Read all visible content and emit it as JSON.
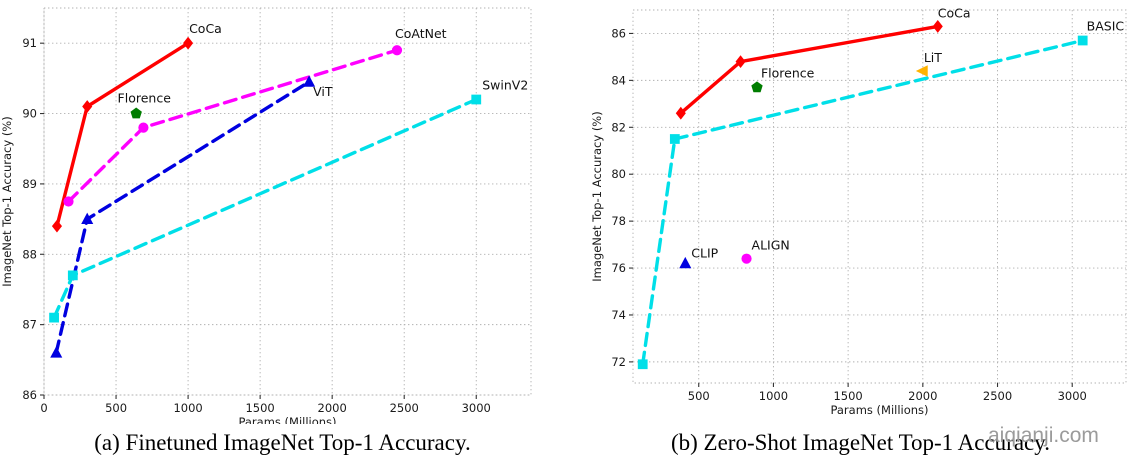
{
  "watermark": {
    "text": "aiqianji.com",
    "color": "#9b9b9b"
  },
  "figures": [
    {
      "id": "finetuned",
      "caption": "(a) Finetuned ImageNet Top-1 Accuracy."
    },
    {
      "id": "zeroshot",
      "caption": "(b) Zero-Shot ImageNet Top-1 Accuracy."
    }
  ],
  "chart_data": [
    {
      "type": "line",
      "title": "",
      "xlabel": "Params (Millions)",
      "ylabel": "ImageNet Top-1 Accuracy (%)",
      "xlim": [
        0,
        3380
      ],
      "ylim": [
        86,
        91.5
      ],
      "xticks": [
        0,
        500,
        1000,
        1500,
        2000,
        2500,
        3000
      ],
      "yticks": [
        86,
        87,
        88,
        89,
        90,
        91
      ],
      "grid": true,
      "legend": "none",
      "series": [
        {
          "name": "CoCa",
          "color": "#ff0000",
          "line": "solid",
          "marker": "diamond",
          "points": [
            [
              90,
              88.4
            ],
            [
              300,
              90.1
            ],
            [
              1000,
              91.0
            ]
          ],
          "label": {
            "text": "CoCa",
            "dx": 1,
            "dy": -10,
            "anchor": "start"
          }
        },
        {
          "name": "CoAtNet",
          "color": "#ff00ff",
          "line": "dashed",
          "marker": "circle",
          "points": [
            [
              170,
              88.75
            ],
            [
              690,
              89.8
            ],
            [
              2450,
              90.9
            ]
          ],
          "label": {
            "text": "CoAtNet",
            "dx": -2,
            "dy": -12,
            "anchor": "start"
          }
        },
        {
          "name": "ViT",
          "color": "#0000e0",
          "line": "dashed",
          "marker": "triangle-up",
          "points": [
            [
              85,
              86.6
            ],
            [
              300,
              88.5
            ],
            [
              1840,
              90.45
            ]
          ],
          "label": {
            "text": "ViT",
            "dx": 4,
            "dy": 14,
            "anchor": "start"
          }
        },
        {
          "name": "SwinV2",
          "color": "#00dfe8",
          "line": "dashed",
          "marker": "square",
          "points": [
            [
              70,
              87.1
            ],
            [
              200,
              87.7
            ],
            [
              3000,
              90.2
            ]
          ],
          "label": {
            "text": "SwinV2",
            "dx": 6,
            "dy": -10,
            "anchor": "start"
          }
        },
        {
          "name": "Florence",
          "color": "#007d00",
          "line": "none",
          "marker": "pentagon",
          "points": [
            [
              640,
              90.0
            ]
          ],
          "label": {
            "text": "Florence",
            "dx": 8,
            "dy": -11,
            "anchor": "middle"
          }
        }
      ]
    },
    {
      "type": "line",
      "title": "",
      "xlabel": "Params (Millions)",
      "ylabel": "ImageNet Top-1 Accuracy (%)",
      "xlim": [
        60,
        3360
      ],
      "ylim": [
        71.1,
        87.0
      ],
      "xticks": [
        500,
        1000,
        1500,
        2000,
        2500,
        3000
      ],
      "yticks": [
        72,
        74,
        76,
        78,
        80,
        82,
        84,
        86
      ],
      "grid": true,
      "legend": "none",
      "series": [
        {
          "name": "CoCa",
          "color": "#ff0000",
          "line": "solid",
          "marker": "diamond",
          "points": [
            [
              380,
              82.6
            ],
            [
              780,
              84.8
            ],
            [
              2100,
              86.3
            ]
          ],
          "label": {
            "text": "CoCa",
            "dx": 0,
            "dy": -9,
            "anchor": "start"
          }
        },
        {
          "name": "BASIC",
          "color": "#00dfe8",
          "line": "dashed",
          "marker": "square",
          "points": [
            [
              125,
              71.9
            ],
            [
              340,
              81.5
            ],
            [
              3070,
              85.7
            ]
          ],
          "label": {
            "text": "BASIC",
            "dx": 4,
            "dy": -10,
            "anchor": "start"
          }
        },
        {
          "name": "CLIP",
          "color": "#0000e0",
          "line": "none",
          "marker": "triangle-up",
          "points": [
            [
              410,
              76.2
            ]
          ],
          "label": {
            "text": "CLIP",
            "dx": 6,
            "dy": -6,
            "anchor": "start"
          }
        },
        {
          "name": "ALIGN",
          "color": "#ff00ff",
          "line": "none",
          "marker": "circle",
          "points": [
            [
              820,
              76.4
            ]
          ],
          "label": {
            "text": "ALIGN",
            "dx": 5,
            "dy": -9,
            "anchor": "start"
          }
        },
        {
          "name": "Florence",
          "color": "#007d00",
          "line": "none",
          "marker": "pentagon",
          "points": [
            [
              890,
              83.7
            ]
          ],
          "label": {
            "text": "Florence",
            "dx": 4,
            "dy": -10,
            "anchor": "start"
          }
        },
        {
          "name": "LiT",
          "color": "#ffb300",
          "line": "none",
          "marker": "triangle-left",
          "points": [
            [
              2000,
              84.4
            ]
          ],
          "label": {
            "text": "LiT",
            "dx": 1,
            "dy": -9,
            "anchor": "start"
          }
        }
      ]
    }
  ]
}
